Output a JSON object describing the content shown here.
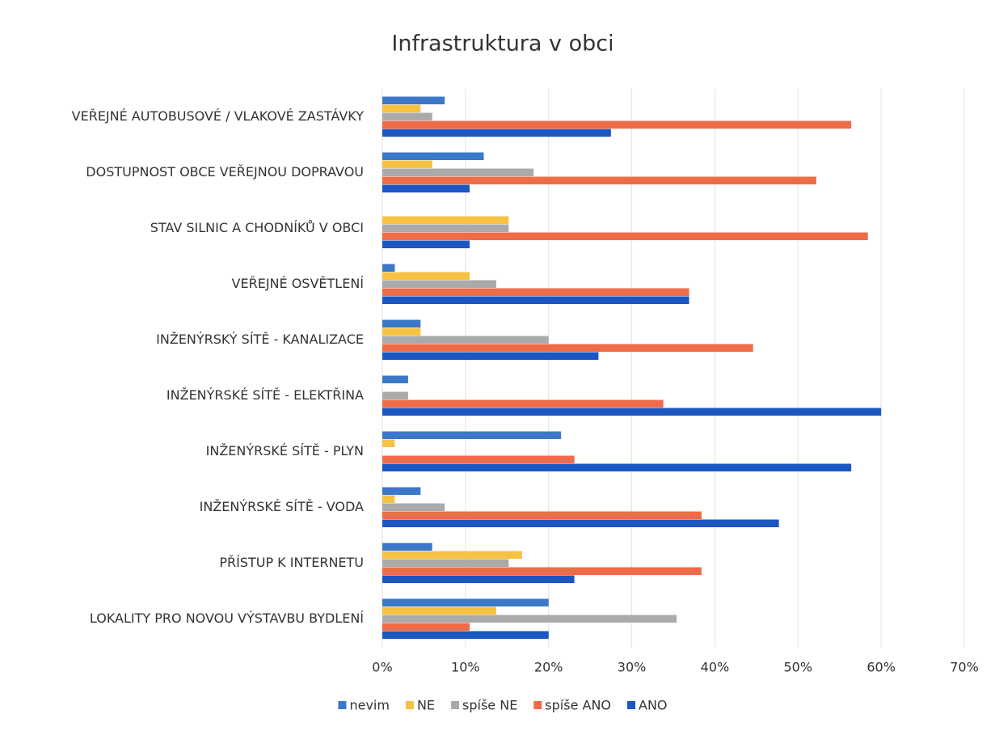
{
  "chart_data": {
    "type": "bar",
    "orientation": "horizontal",
    "title": "Infrastruktura v obci",
    "categories": [
      "VEŘEJNÉ AUTOBUSOVÉ / VLAKOVÉ ZASTÁVKY",
      "DOSTUPNOST OBCE VEŘEJNOU DOPRAVOU",
      "STAV SILNIC A CHODNÍKŮ V OBCI",
      "VEŘEJNÉ OSVĚTLENÍ",
      "INŽENÝRSKÝ SÍTĚ - KANALIZACE",
      "INŽENÝRSKÉ SÍTĚ - ELEKTŘINA",
      "INŽENÝRSKÉ SÍTĚ - PLYN",
      "INŽENÝRSKÉ SÍTĚ - VODA",
      "PŘÍSTUP K INTERNETU",
      "LOKALITY PRO NOVOU VÝSTAVBU BYDLENÍ"
    ],
    "series": [
      {
        "name": "nevim",
        "color": "#3b78c9",
        "values": [
          7.5,
          12.2,
          0,
          1.5,
          4.6,
          3.1,
          21.5,
          4.6,
          6.0,
          20.0
        ]
      },
      {
        "name": "NE",
        "color": "#f7c244",
        "values": [
          4.6,
          6.0,
          15.2,
          10.5,
          4.6,
          0,
          1.5,
          1.5,
          16.8,
          13.7
        ]
      },
      {
        "name": "spíše NE",
        "color": "#aaaaaa",
        "values": [
          6.0,
          18.2,
          15.2,
          13.7,
          20.0,
          3.1,
          0,
          7.5,
          15.2,
          35.4
        ]
      },
      {
        "name": "spíše ANO",
        "color": "#f06b47",
        "values": [
          56.4,
          52.2,
          58.4,
          36.9,
          44.6,
          33.8,
          23.1,
          38.4,
          38.4,
          10.5
        ]
      },
      {
        "name": "ANO",
        "color": "#1b56c1",
        "values": [
          27.5,
          10.5,
          10.5,
          36.9,
          26.0,
          60.0,
          56.4,
          47.7,
          23.1,
          20.0
        ]
      }
    ],
    "xlim": [
      0,
      70
    ],
    "xticks": [
      {
        "value": 0,
        "label": "0%"
      },
      {
        "value": 10,
        "label": "10%"
      },
      {
        "value": 20,
        "label": "20%"
      },
      {
        "value": 30,
        "label": "30%"
      },
      {
        "value": 40,
        "label": "40%"
      },
      {
        "value": 50,
        "label": "50%"
      },
      {
        "value": 60,
        "label": "60%"
      },
      {
        "value": 70,
        "label": "70%"
      }
    ],
    "grid": true,
    "legend": "bottom"
  }
}
